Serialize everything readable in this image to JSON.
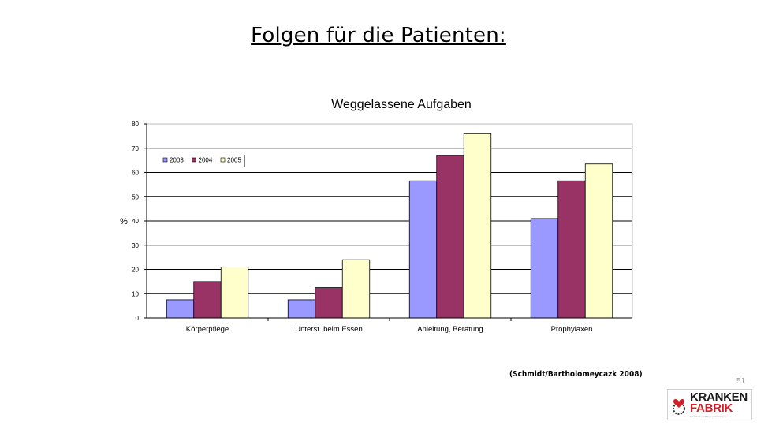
{
  "slide": {
    "title": "Folgen für die Patienten:",
    "source": "(Schmidt/Bartholomeycazk 2008)",
    "page_number": "51"
  },
  "logo": {
    "line1": "KRANKEN",
    "line2": "FABRIK",
    "tagline": "Alles rund um Pflege und Kranken"
  },
  "colors": {
    "series_2003": "#9999ff",
    "series_2004": "#993366",
    "series_2005": "#ffffcc",
    "logo_red": "#d0212a"
  },
  "chart_data": {
    "type": "bar",
    "title": "Weggelassene Aufgaben",
    "xlabel": "",
    "ylabel": "%",
    "ylim": [
      0,
      80
    ],
    "yticks": [
      0,
      10,
      20,
      30,
      40,
      50,
      60,
      70,
      80
    ],
    "grid": true,
    "legend": "top-left",
    "categories": [
      "Körperpflege",
      "Unterst. beim Essen",
      "Anleitung, Beratung",
      "Prophylaxen"
    ],
    "series": [
      {
        "name": "2003",
        "values": [
          7.5,
          7.5,
          56.5,
          41
        ]
      },
      {
        "name": "2004",
        "values": [
          15,
          12.5,
          67,
          56.5
        ]
      },
      {
        "name": "2005",
        "values": [
          21,
          24,
          76,
          63.5
        ]
      }
    ]
  }
}
